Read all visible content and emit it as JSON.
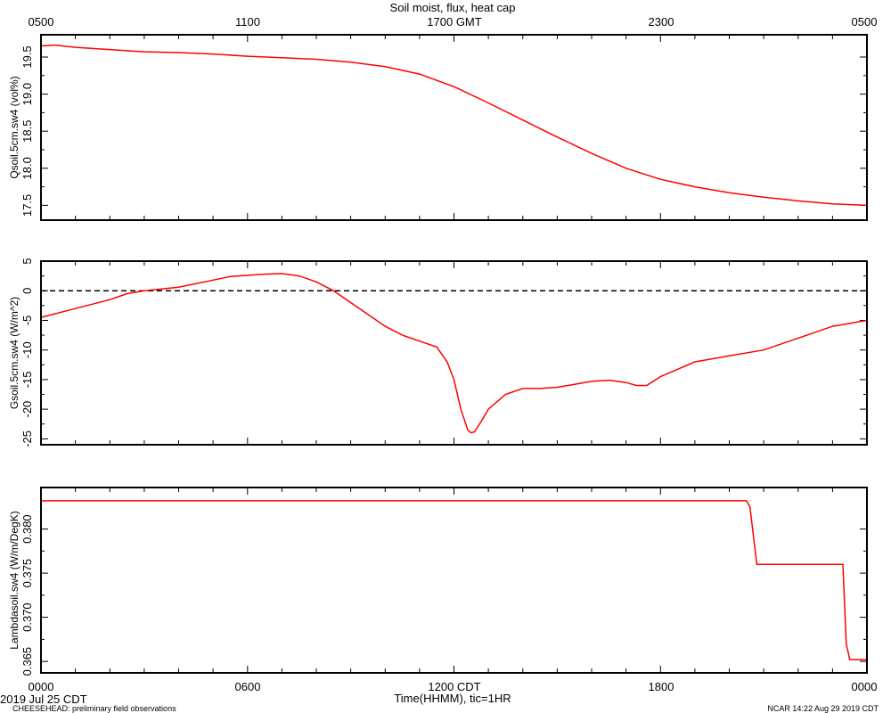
{
  "figure": {
    "title": "Soil moist, flux, heat cap",
    "top_axis_labels": [
      "0500",
      "1100",
      "1700 GMT",
      "2300",
      "0500"
    ],
    "bottom_axis_labels": [
      "0000",
      "0600",
      "1200 CDT",
      "1800",
      "0000"
    ],
    "x_axis_title": "Time(HHMM), tic=1HR",
    "date_label": "2019 Jul 25 CDT",
    "footer_left": "CHEESEHEAD: preliminary field observations",
    "footer_right": "NCAR 14:22 Aug 29 2019 CDT"
  },
  "chart_data": [
    {
      "type": "line",
      "ylabel": "Qsoil.5cm.sw4 (vol%)",
      "xlim": [
        0,
        24
      ],
      "ylim": [
        17.3,
        19.8
      ],
      "yticks": [
        17.5,
        18.0,
        18.5,
        19.0,
        19.5
      ],
      "ytick_labels": [
        "17.5",
        "18.0",
        "18.5",
        "19.0",
        "19.5"
      ],
      "zero_line": false,
      "series": [
        {
          "color": "#ff0000",
          "x": [
            0,
            0.4,
            1,
            2,
            3,
            4,
            5,
            6,
            7,
            8,
            9,
            10,
            11,
            12,
            13,
            14,
            15,
            16,
            17,
            18,
            19,
            20,
            21,
            22,
            23,
            24
          ],
          "y": [
            19.65,
            19.66,
            19.63,
            19.6,
            19.57,
            19.56,
            19.54,
            19.51,
            19.49,
            19.47,
            19.43,
            19.37,
            19.27,
            19.1,
            18.88,
            18.65,
            18.42,
            18.2,
            18.0,
            17.85,
            17.75,
            17.67,
            17.61,
            17.56,
            17.52,
            17.5
          ]
        }
      ]
    },
    {
      "type": "line",
      "ylabel": "Gsoil.5cm.sw4 (W/m^2)",
      "xlim": [
        0,
        24
      ],
      "ylim": [
        -26,
        5
      ],
      "yticks": [
        5,
        0,
        -5,
        -10,
        -15,
        -20,
        -25
      ],
      "ytick_labels": [
        "5",
        "0",
        "-5",
        "-10",
        "-15",
        "-20",
        "-25"
      ],
      "zero_line": true,
      "series": [
        {
          "color": "#ff0000",
          "x": [
            0,
            1,
            2,
            2.5,
            3,
            3.5,
            4,
            5,
            5.5,
            6,
            6.5,
            7,
            7.5,
            8,
            8.5,
            9,
            9.5,
            10,
            10.5,
            11,
            11.5,
            11.8,
            12,
            12.2,
            12.4,
            12.5,
            12.6,
            12.8,
            13,
            13.5,
            14,
            14.5,
            15,
            15.5,
            16,
            16.5,
            17,
            17.3,
            17.6,
            18,
            19,
            20,
            21,
            22,
            23,
            24
          ],
          "y": [
            -4.5,
            -3,
            -1.5,
            -0.5,
            0,
            0.3,
            0.6,
            1.8,
            2.4,
            2.6,
            2.8,
            2.9,
            2.5,
            1.5,
            0,
            -2,
            -4,
            -6,
            -7.5,
            -8.5,
            -9.5,
            -12,
            -15,
            -20,
            -23.5,
            -24,
            -23.8,
            -22,
            -20,
            -17.5,
            -16.5,
            -16.5,
            -16.3,
            -15.8,
            -15.3,
            -15.1,
            -15.5,
            -16,
            -16,
            -14.5,
            -12,
            -11,
            -10,
            -8,
            -6,
            -5
          ]
        }
      ]
    },
    {
      "type": "line",
      "ylabel": "Lambdasoil.sw4 (W/m/DegK)",
      "xlim": [
        0,
        24
      ],
      "ylim": [
        0.3637,
        0.3847
      ],
      "yticks": [
        0.365,
        0.37,
        0.375,
        0.38
      ],
      "ytick_labels": [
        "0.365",
        "0.370",
        "0.375",
        "0.380"
      ],
      "zero_line": false,
      "series": [
        {
          "color": "#ff0000",
          "x": [
            0,
            20.5,
            20.6,
            20.8,
            23.3,
            23.4,
            23.5,
            23.6,
            24
          ],
          "y": [
            0.3832,
            0.3832,
            0.3825,
            0.376,
            0.376,
            0.367,
            0.3652,
            0.3652,
            0.3652
          ]
        }
      ]
    }
  ]
}
